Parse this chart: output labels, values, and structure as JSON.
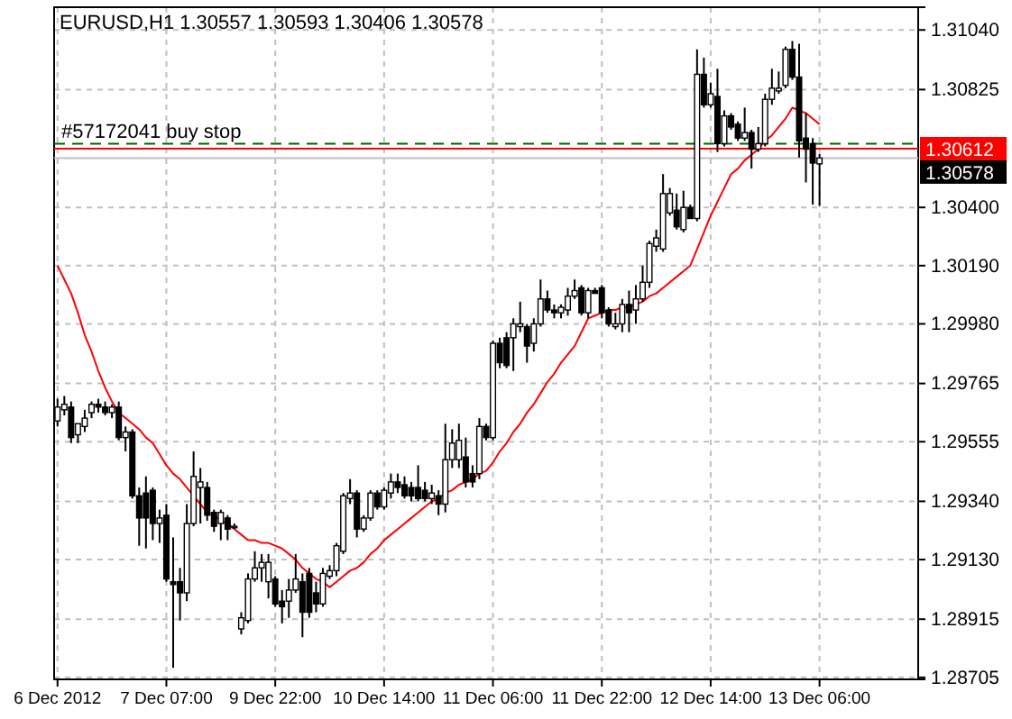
{
  "chart_data": {
    "type": "candlestick",
    "title": "EURUSD,H1 1.30557 1.30593 1.30406 1.30578",
    "categories": [
      "6 Dec 2012",
      null,
      null,
      null,
      null,
      null,
      null,
      null,
      null,
      null,
      null,
      null,
      null,
      null,
      null,
      null,
      "7 Dec 07:00",
      null,
      null,
      null,
      null,
      null,
      null,
      null,
      null,
      null,
      null,
      null,
      null,
      null,
      null,
      null,
      "9 Dec 22:00",
      null,
      null,
      null,
      null,
      null,
      null,
      null,
      null,
      null,
      null,
      null,
      null,
      null,
      null,
      null,
      "10 Dec 14:00",
      null,
      null,
      null,
      null,
      null,
      null,
      null,
      null,
      null,
      null,
      null,
      null,
      null,
      null,
      null,
      "11 Dec 06:00",
      null,
      null,
      null,
      null,
      null,
      null,
      null,
      null,
      null,
      null,
      null,
      null,
      null,
      null,
      null,
      "11 Dec 22:00",
      null,
      null,
      null,
      null,
      null,
      null,
      null,
      null,
      null,
      null,
      null,
      null,
      null,
      null,
      null,
      "12 Dec 14:00",
      null,
      null,
      null,
      null,
      null,
      null,
      null,
      null,
      null,
      null,
      null,
      null,
      null,
      null,
      null,
      "13 Dec 06:00"
    ],
    "ohlc": [
      [
        1.2963,
        1.2971,
        1.2961,
        1.2968
      ],
      [
        1.2967,
        1.2972,
        1.2965,
        1.2969
      ],
      [
        1.2968,
        1.297,
        1.2955,
        1.2957
      ],
      [
        1.2958,
        1.2962,
        1.2955,
        1.2962
      ],
      [
        1.2961,
        1.2967,
        1.2959,
        1.2964
      ],
      [
        1.2966,
        1.297,
        1.2964,
        1.2969
      ],
      [
        1.2969,
        1.2971,
        1.2966,
        1.2968
      ],
      [
        1.2968,
        1.297,
        1.2965,
        1.2966
      ],
      [
        1.2966,
        1.2969,
        1.2964,
        1.2968
      ],
      [
        1.2968,
        1.297,
        1.2956,
        1.2957
      ],
      [
        1.2957,
        1.2961,
        1.2952,
        1.2959
      ],
      [
        1.2959,
        1.296,
        1.2935,
        1.2936
      ],
      [
        1.2936,
        1.2939,
        1.2918,
        1.2928
      ],
      [
        1.2937,
        1.2943,
        1.2917,
        1.2928
      ],
      [
        1.2938,
        1.2939,
        1.292,
        1.2926
      ],
      [
        1.2926,
        1.2931,
        1.2919,
        1.2928
      ],
      [
        1.2929,
        1.2933,
        1.2905,
        1.2906
      ],
      [
        1.2905,
        1.2921,
        1.2874,
        1.2904
      ],
      [
        1.2905,
        1.291,
        1.2891,
        1.2901
      ],
      [
        1.2901,
        1.2933,
        1.2898,
        1.2926
      ],
      [
        1.2926,
        1.2952,
        1.2925,
        1.2943
      ],
      [
        1.2939,
        1.2946,
        1.2926,
        1.2941
      ],
      [
        1.2939,
        1.2941,
        1.2927,
        1.2929
      ],
      [
        1.293,
        1.2931,
        1.2923,
        1.2925
      ],
      [
        1.2926,
        1.2931,
        1.292,
        1.293
      ],
      [
        1.2928,
        1.2929,
        1.292,
        1.2924
      ],
      [
        1.2925,
        1.2926,
        1.2924,
        1.2925
      ],
      [
        1.2888,
        1.2894,
        1.2886,
        1.2892
      ],
      [
        1.2891,
        1.2908,
        1.289,
        1.2906
      ],
      [
        1.2906,
        1.2916,
        1.2905,
        1.291
      ],
      [
        1.291,
        1.2915,
        1.2905,
        1.2912
      ],
      [
        1.2905,
        1.2915,
        1.2899,
        1.2912
      ],
      [
        1.2906,
        1.2907,
        1.2896,
        1.2897
      ],
      [
        1.2898,
        1.2902,
        1.289,
        1.2896
      ],
      [
        1.2898,
        1.2906,
        1.2892,
        1.2902
      ],
      [
        1.2902,
        1.2915,
        1.2901,
        1.2906
      ],
      [
        1.2905,
        1.2908,
        1.2885,
        1.2894
      ],
      [
        1.2908,
        1.291,
        1.2892,
        1.2894
      ],
      [
        1.2901,
        1.2905,
        1.2894,
        1.2897
      ],
      [
        1.2897,
        1.291,
        1.2896,
        1.2908
      ],
      [
        1.2907,
        1.2911,
        1.2906,
        1.2909
      ],
      [
        1.2909,
        1.2919,
        1.2907,
        1.2918
      ],
      [
        1.2916,
        1.2937,
        1.2915,
        1.2936
      ],
      [
        1.2935,
        1.2942,
        1.2933,
        1.2937
      ],
      [
        1.2937,
        1.2938,
        1.2921,
        1.2924
      ],
      [
        1.2924,
        1.2929,
        1.2923,
        1.2928
      ],
      [
        1.2928,
        1.2938,
        1.2927,
        1.2937
      ],
      [
        1.2937,
        1.2938,
        1.2931,
        1.2932
      ],
      [
        1.2932,
        1.2939,
        1.2931,
        1.2938
      ],
      [
        1.2937,
        1.2944,
        1.2935,
        1.2941
      ],
      [
        1.2941,
        1.2944,
        1.2937,
        1.2939
      ],
      [
        1.294,
        1.2943,
        1.2935,
        1.2936
      ],
      [
        1.2939,
        1.2941,
        1.2934,
        1.2936
      ],
      [
        1.2939,
        1.2947,
        1.2934,
        1.2935
      ],
      [
        1.2938,
        1.2941,
        1.2934,
        1.2935
      ],
      [
        1.2935,
        1.294,
        1.2933,
        1.2937
      ],
      [
        1.2936,
        1.2938,
        1.2929,
        1.2933
      ],
      [
        1.2933,
        1.2962,
        1.293,
        1.2949
      ],
      [
        1.2949,
        1.296,
        1.2946,
        1.2955
      ],
      [
        1.2949,
        1.2962,
        1.2946,
        1.2956
      ],
      [
        1.295,
        1.2957,
        1.2939,
        1.2941
      ],
      [
        1.2944,
        1.2947,
        1.2939,
        1.2941
      ],
      [
        1.2944,
        1.2964,
        1.2942,
        1.2961
      ],
      [
        1.2961,
        1.2962,
        1.2956,
        1.2957
      ],
      [
        1.2957,
        1.2992,
        1.2956,
        1.2991
      ],
      [
        1.2991,
        1.2993,
        1.2982,
        1.2984
      ],
      [
        1.2993,
        1.2995,
        1.2982,
        1.2983
      ],
      [
        1.2993,
        1.3,
        1.2981,
        1.2998
      ],
      [
        1.2997,
        1.3006,
        1.2995,
        1.2998
      ],
      [
        1.2997,
        1.2998,
        1.2984,
        1.299
      ],
      [
        1.2991,
        1.3,
        1.2988,
        1.2998
      ],
      [
        1.2998,
        1.3014,
        1.2997,
        1.3007
      ],
      [
        1.3007,
        1.301,
        1.3002,
        1.3003
      ],
      [
        1.3003,
        1.3005,
        1.3,
        1.3002
      ],
      [
        1.3002,
        1.3005,
        1.3,
        1.3004
      ],
      [
        1.3003,
        1.3011,
        1.3001,
        1.3008
      ],
      [
        1.3008,
        1.3014,
        1.3007,
        1.301
      ],
      [
        1.3011,
        1.3012,
        1.3001,
        1.3002
      ],
      [
        1.3002,
        1.3011,
        1.3,
        1.301
      ],
      [
        1.301,
        1.3011,
        1.3009,
        1.3009
      ],
      [
        1.3011,
        1.3012,
        1.3,
        1.3002
      ],
      [
        1.3003,
        1.3004,
        1.2997,
        1.2998
      ],
      [
        1.2997,
        1.3002,
        1.2996,
        1.2998
      ],
      [
        1.2998,
        1.3007,
        1.2995,
        1.3005
      ],
      [
        1.3005,
        1.301,
        1.2995,
        1.3002
      ],
      [
        1.3003,
        1.3012,
        1.2998,
        1.3007
      ],
      [
        1.3007,
        1.3019,
        1.3006,
        1.3013
      ],
      [
        1.3013,
        1.3028,
        1.3011,
        1.3027
      ],
      [
        1.3026,
        1.3032,
        1.3024,
        1.3029
      ],
      [
        1.3025,
        1.3052,
        1.3024,
        1.3045
      ],
      [
        1.3038,
        1.3047,
        1.3037,
        1.3045
      ],
      [
        1.3039,
        1.3045,
        1.3032,
        1.3033
      ],
      [
        1.3032,
        1.3046,
        1.3031,
        1.304
      ],
      [
        1.304,
        1.3041,
        1.3036,
        1.3036
      ],
      [
        1.3036,
        1.3097,
        1.3035,
        1.3088
      ],
      [
        1.3088,
        1.3094,
        1.3076,
        1.3077
      ],
      [
        1.3077,
        1.3085,
        1.3076,
        1.3081
      ],
      [
        1.308,
        1.309,
        1.306,
        1.3063
      ],
      [
        1.3063,
        1.3075,
        1.3062,
        1.3073
      ],
      [
        1.3073,
        1.3074,
        1.3068,
        1.3069
      ],
      [
        1.307,
        1.3071,
        1.3064,
        1.3065
      ],
      [
        1.3065,
        1.3076,
        1.3064,
        1.3067
      ],
      [
        1.3067,
        1.3068,
        1.3054,
        1.3061
      ],
      [
        1.3061,
        1.3069,
        1.306,
        1.3063
      ],
      [
        1.3063,
        1.3081,
        1.3062,
        1.3079
      ],
      [
        1.3079,
        1.309,
        1.3077,
        1.3083
      ],
      [
        1.3082,
        1.3089,
        1.3081,
        1.3083
      ],
      [
        1.3084,
        1.3098,
        1.3083,
        1.3097
      ],
      [
        1.3097,
        1.31,
        1.3086,
        1.3087
      ],
      [
        1.3087,
        1.3099,
        1.3058,
        1.3064
      ],
      [
        1.3065,
        1.3074,
        1.3049,
        1.3061
      ],
      [
        1.3063,
        1.3065,
        1.3041,
        1.3056
      ],
      [
        1.30557,
        1.30593,
        1.30406,
        1.30578
      ]
    ],
    "series": [
      {
        "type": "line",
        "color": "#ff0000",
        "values": [
          1.3019,
          1.3014,
          1.3009,
          1.3002,
          1.2994,
          1.2988,
          1.2981,
          1.2975,
          1.297,
          1.2966,
          1.2964,
          1.2962,
          1.296,
          1.2957,
          1.2955,
          1.2951,
          1.2947,
          1.2944,
          1.2942,
          1.2939,
          1.2936,
          1.2933,
          1.293,
          1.2929,
          1.2927,
          1.2926,
          1.2924,
          1.2922,
          1.292,
          1.292,
          1.2919,
          1.2919,
          1.2918,
          1.2917,
          1.2915,
          1.2913,
          1.291,
          1.2908,
          1.2906,
          1.2905,
          1.2903,
          1.2905,
          1.2907,
          1.2909,
          1.291,
          1.2912,
          1.2915,
          1.2917,
          1.292,
          1.2922,
          1.2924,
          1.2926,
          1.2928,
          1.293,
          1.2932,
          1.2934,
          1.2935,
          1.2937,
          1.2938,
          1.294,
          1.2941,
          1.2942,
          1.2944,
          1.2945,
          1.2948,
          1.2952,
          1.2955,
          1.2959,
          1.2962,
          1.2966,
          1.2969,
          1.2973,
          1.2977,
          1.298,
          1.2984,
          1.2987,
          1.299,
          1.2995,
          1.3,
          1.3001,
          1.3002,
          1.3003,
          1.3003,
          1.3004,
          1.3004,
          1.3005,
          1.3006,
          1.3008,
          1.3009,
          1.3011,
          1.3013,
          1.3015,
          1.3017,
          1.3019,
          1.3025,
          1.3031,
          1.3037,
          1.3042,
          1.3047,
          1.3052,
          1.3054,
          1.3057,
          1.3059,
          1.3061,
          1.3064,
          1.3066,
          1.3069,
          1.3072,
          1.3076,
          1.3075,
          1.3074,
          1.3072,
          1.307
        ]
      }
    ],
    "ylim": [
      1.28698,
      1.31122
    ],
    "yticks": [
      {
        "value": 1.3104,
        "label": "1.31040"
      },
      {
        "value": 1.30825,
        "label": "1.30825"
      },
      {
        "value": 1.304,
        "label": "1.30400"
      },
      {
        "value": 1.3019,
        "label": "1.30190"
      },
      {
        "value": 1.2998,
        "label": "1.29980"
      },
      {
        "value": 1.29765,
        "label": "1.29765"
      },
      {
        "value": 1.29555,
        "label": "1.29555"
      },
      {
        "value": 1.2934,
        "label": "1.29340"
      },
      {
        "value": 1.2913,
        "label": "1.29130"
      },
      {
        "value": 1.28915,
        "label": "1.28915"
      },
      {
        "value": 1.28705,
        "label": "1.28705"
      }
    ],
    "ref_lines": [
      {
        "axis": "y",
        "value": 1.3063,
        "label": "#57172041 buy stop",
        "color": "#006400",
        "line_style": "dashed"
      },
      {
        "axis": "y",
        "value": 1.30612,
        "label": "1.30612",
        "color": "#ff0000",
        "line_style": "solid"
      },
      {
        "axis": "y",
        "value": 1.30578,
        "label": "1.30578",
        "color": "#c0c0c0",
        "line_style": "solid"
      }
    ],
    "grid": true
  }
}
